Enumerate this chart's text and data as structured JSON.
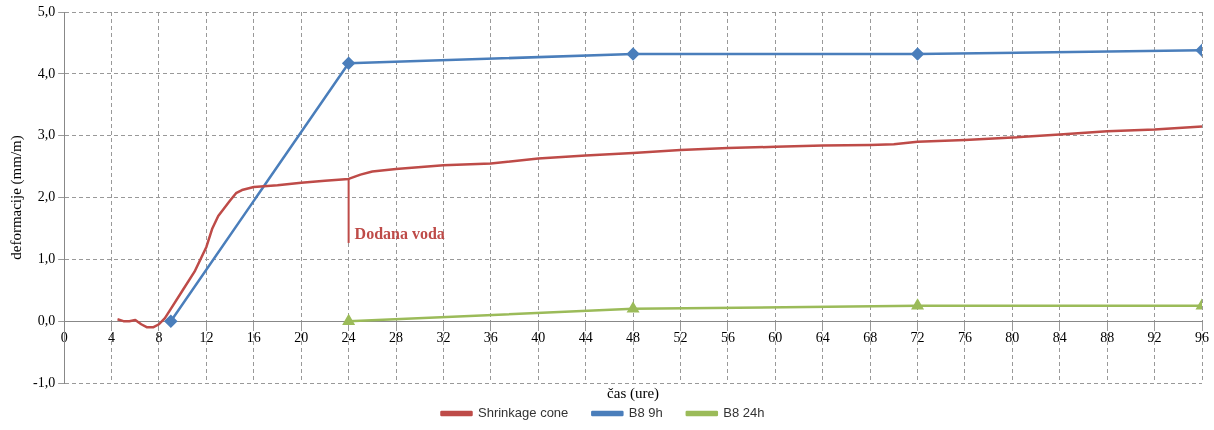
{
  "chart_data": {
    "type": "line",
    "xlabel": "čas (ure)",
    "ylabel": "deformacije (mm/m)",
    "xlim": [
      0,
      96
    ],
    "xticks": [
      0,
      4,
      8,
      12,
      16,
      20,
      24,
      28,
      32,
      36,
      40,
      44,
      48,
      52,
      56,
      60,
      64,
      68,
      72,
      76,
      80,
      84,
      88,
      92,
      96
    ],
    "ylim": [
      -1,
      5
    ],
    "yticks": [
      {
        "value": -1,
        "label": "-1,0"
      },
      {
        "value": 0,
        "label": "0,0"
      },
      {
        "value": 1,
        "label": "1,0"
      },
      {
        "value": 2,
        "label": "2,0"
      },
      {
        "value": 3,
        "label": "3,0"
      },
      {
        "value": 4,
        "label": "4,0"
      },
      {
        "value": 5,
        "label": "5,0"
      }
    ],
    "grid": true,
    "legend": "bottom",
    "line_style": "solid",
    "annotations": [
      {
        "text": "Dodana voda",
        "x": 24,
        "y": 2.3
      }
    ],
    "series": [
      {
        "name": "Shrinkage cone",
        "color": "#be4b48",
        "marker": "none",
        "x": [
          4.5,
          5,
          5.5,
          6,
          6.5,
          7,
          7.5,
          8,
          8.5,
          9,
          10,
          11,
          12,
          12.5,
          13,
          14,
          14.5,
          15,
          16,
          18,
          20,
          22,
          24,
          25,
          26,
          28,
          32,
          36,
          40,
          44,
          48,
          52,
          56,
          60,
          64,
          68,
          70,
          72,
          76,
          80,
          84,
          88,
          92,
          96
        ],
        "values": [
          0.03,
          0,
          0,
          0.02,
          -0.05,
          -0.1,
          -0.1,
          -0.05,
          0.05,
          0.2,
          0.5,
          0.8,
          1.2,
          1.5,
          1.7,
          1.95,
          2.07,
          2.12,
          2.17,
          2.2,
          2.24,
          2.27,
          2.3,
          2.37,
          2.42,
          2.46,
          2.52,
          2.55,
          2.63,
          2.68,
          2.72,
          2.77,
          2.8,
          2.82,
          2.84,
          2.85,
          2.86,
          2.9,
          2.93,
          2.97,
          3.02,
          3.07,
          3.1,
          3.15
        ]
      },
      {
        "name": "B8 9h",
        "color": "#4a7ebb",
        "marker": "diamond",
        "x": [
          9,
          24,
          48,
          72,
          96
        ],
        "values": [
          0,
          4.17,
          4.32,
          4.32,
          4.38
        ]
      },
      {
        "name": "B8 24h",
        "color": "#9bbb59",
        "marker": "triangle",
        "x": [
          24,
          48,
          72,
          96
        ],
        "values": [
          0,
          0.2,
          0.25,
          0.25
        ]
      }
    ]
  }
}
